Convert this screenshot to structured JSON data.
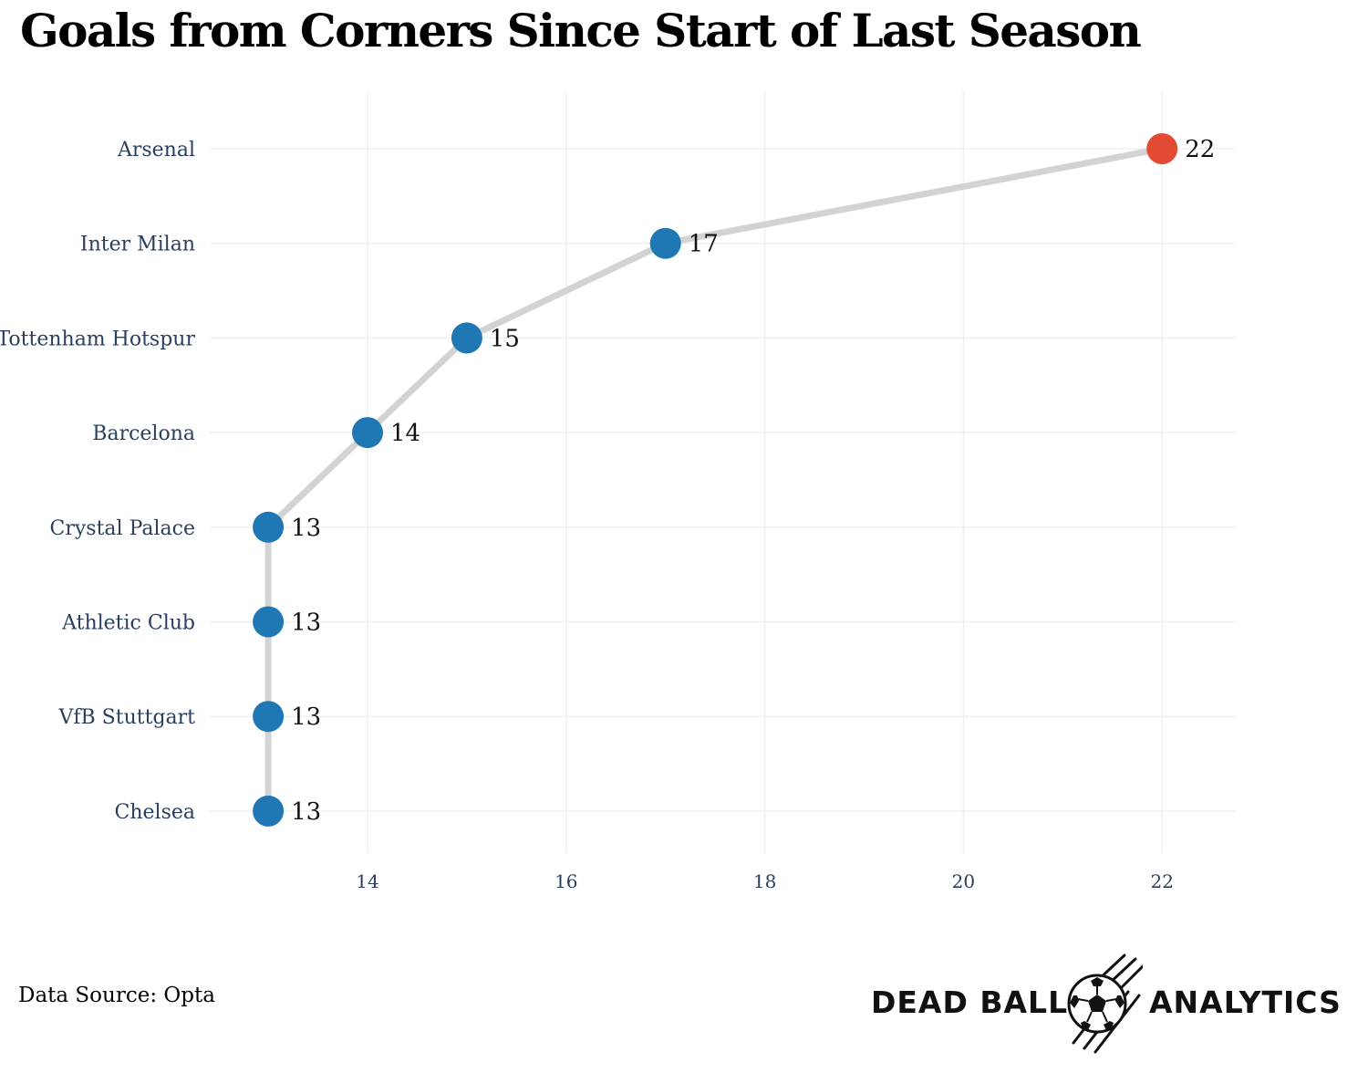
{
  "title": "Goals from Corners Since Start of Last Season",
  "footer": {
    "source": "Data Source: Opta",
    "logo_left": "DEAD BALL",
    "logo_right": "ANALYTICS"
  },
  "colors": {
    "highlight": "#e24a33",
    "point": "#1f77b4",
    "line": "#d3d3d3",
    "grid": "#eef0f6",
    "tick_text": "#2a3f5f",
    "value_text": "#111111"
  },
  "chart_data": {
    "type": "line",
    "title": "Goals from Corners Since Start of Last Season",
    "xlabel": "",
    "ylabel": "",
    "xlim": [
      12.2,
      22.7
    ],
    "x_ticks": [
      14,
      16,
      18,
      20,
      22
    ],
    "grid": true,
    "categories": [
      "Arsenal",
      "Inter Milan",
      "Tottenham Hotspur",
      "Barcelona",
      "Crystal Palace",
      "Athletic Club",
      "VfB Stuttgart",
      "Chelsea"
    ],
    "values": [
      22,
      17,
      15,
      14,
      13,
      13,
      13,
      13
    ],
    "highlight": [
      "Arsenal"
    ]
  }
}
